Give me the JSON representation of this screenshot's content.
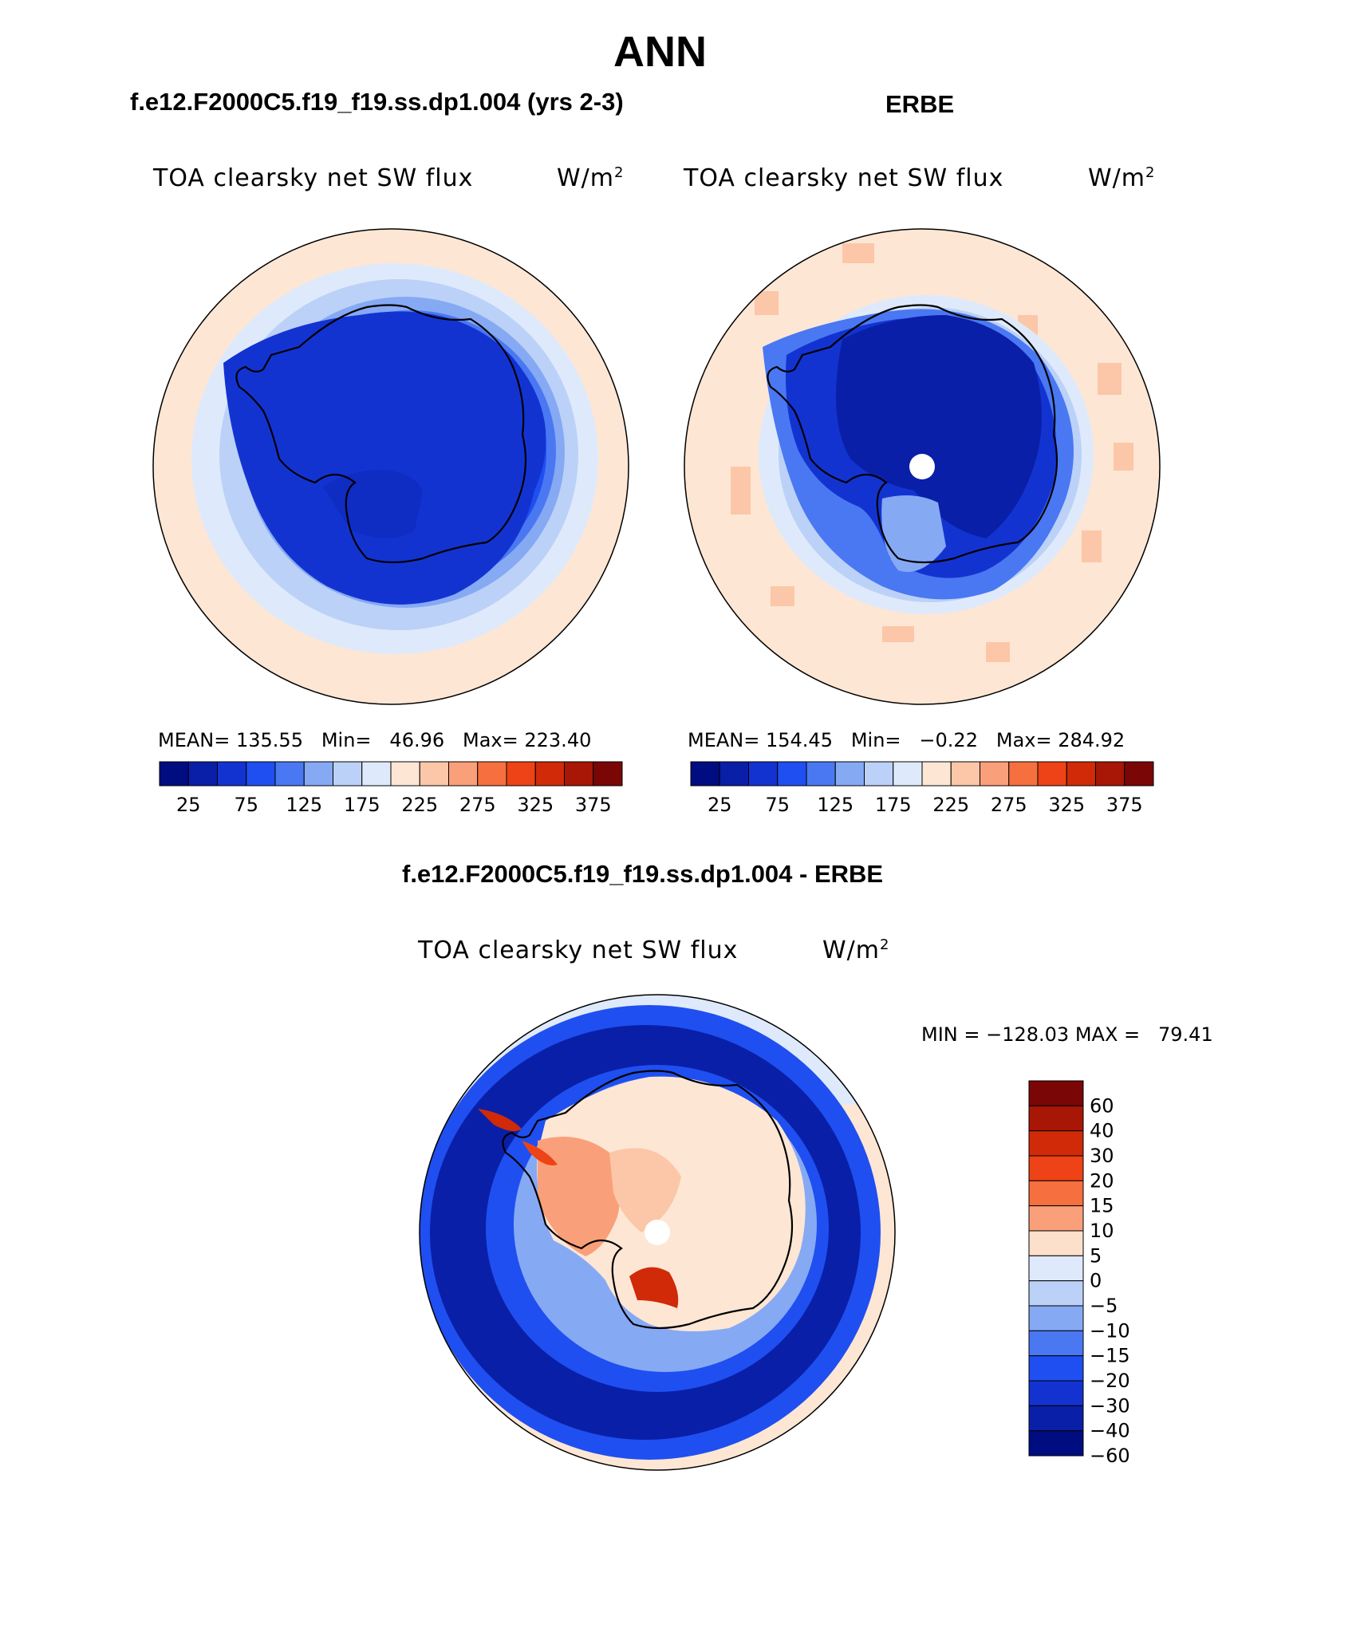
{
  "page": {
    "title": "ANN"
  },
  "panels": [
    {
      "case_title": "f.e12.F2000C5.f19_f19.ss.dp1.004 (yrs 2-3)",
      "variable_label": "TOA clearsky net SW flux",
      "units_base": "W/m",
      "units_exp": "2",
      "stats_text": "MEAN= 135.55   Min=   46.96   Max= 223.40",
      "mean": 135.55,
      "min": 46.96,
      "max": 223.4
    },
    {
      "case_title": "ERBE",
      "variable_label": "TOA clearsky net SW flux",
      "units_base": "W/m",
      "units_exp": "2",
      "stats_text": "MEAN= 154.45   Min=   −0.22   Max= 284.92",
      "mean": 154.45,
      "min": -0.22,
      "max": 284.92
    }
  ],
  "difference": {
    "case_title": "f.e12.F2000C5.f19_f19.ss.dp1.004 - ERBE",
    "variable_label": "TOA clearsky net SW flux",
    "units_base": "W/m",
    "units_exp": "2",
    "minmax_text": "MIN = −128.03 MAX =   79.41",
    "min": -128.03,
    "max": 79.41
  },
  "colorbar_abs": {
    "colors": [
      "#000d80",
      "#0a1fa8",
      "#1333d1",
      "#1f4ff0",
      "#4a78f2",
      "#86a9f4",
      "#bcd1f7",
      "#deeafb",
      "#fde6d4",
      "#fbc7a8",
      "#f9a07a",
      "#f6703f",
      "#ee4316",
      "#d02a08",
      "#a81605",
      "#7a0606"
    ],
    "labels": [
      "25",
      "75",
      "125",
      "175",
      "225",
      "275",
      "325",
      "375"
    ]
  },
  "colorbar_diff": {
    "colors": [
      "#7a0606",
      "#a81605",
      "#d02a08",
      "#ee4316",
      "#f6703f",
      "#f9a07a",
      "#fde0cc",
      "#deeafb",
      "#bcd1f7",
      "#86a9f4",
      "#4a78f2",
      "#1f4ff0",
      "#1333d1",
      "#0a1fa8",
      "#000d80"
    ],
    "labels": [
      "60",
      "40",
      "30",
      "20",
      "15",
      "10",
      "5",
      "0",
      "−5",
      "−10",
      "−15",
      "−20",
      "−30",
      "−40",
      "−60"
    ]
  }
}
